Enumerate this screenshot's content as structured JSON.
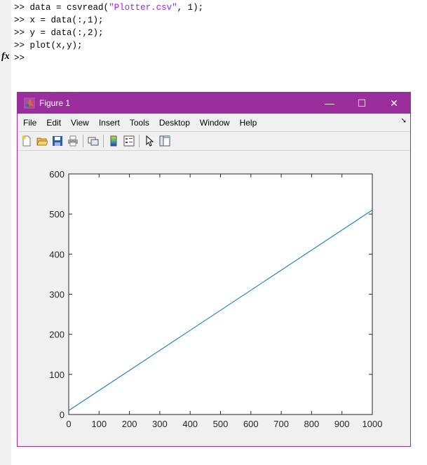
{
  "command_window": {
    "lines": [
      {
        "prompt": ">>",
        "code": "data = csvread(",
        "string": "\"Plotter.csv\"",
        "rest": ", 1);"
      },
      {
        "prompt": ">>",
        "code": "x = data(:,1);",
        "string": "",
        "rest": ""
      },
      {
        "prompt": ">>",
        "code": "y = data(:,2);",
        "string": "",
        "rest": ""
      },
      {
        "prompt": ">>",
        "code": "plot(x,y);",
        "string": "",
        "rest": ""
      },
      {
        "prompt": ">>",
        "code": "",
        "string": "",
        "rest": ""
      }
    ],
    "fx_label": "fx",
    "string_color": "#a020f0"
  },
  "figure": {
    "title": "Figure 1",
    "titlebar_color": "#9b2d9c",
    "window_buttons": {
      "minimize": "—",
      "maximize": "☐",
      "close": "✕"
    },
    "menu": [
      "File",
      "Edit",
      "View",
      "Insert",
      "Tools",
      "Desktop",
      "Window",
      "Help"
    ],
    "dock_glyph": "➘",
    "toolbar_icons": [
      "new-figure-icon",
      "open-file-icon",
      "save-icon",
      "print-icon",
      "link-plot-icon",
      "colorbar-icon",
      "legend-icon",
      "edit-plot-icon",
      "property-inspector-icon"
    ]
  },
  "chart_data": {
    "type": "line",
    "title": "",
    "xlabel": "",
    "ylabel": "",
    "xlim": [
      0,
      1000
    ],
    "ylim": [
      0,
      600
    ],
    "x_ticks": [
      0,
      100,
      200,
      300,
      400,
      500,
      600,
      700,
      800,
      900,
      1000
    ],
    "y_ticks": [
      0,
      100,
      200,
      300,
      400,
      500,
      600
    ],
    "series": [
      {
        "x": [
          0,
          1000
        ],
        "y": [
          10,
          510
        ],
        "color": "#0072bd"
      }
    ],
    "grid": false,
    "legend": "none"
  }
}
